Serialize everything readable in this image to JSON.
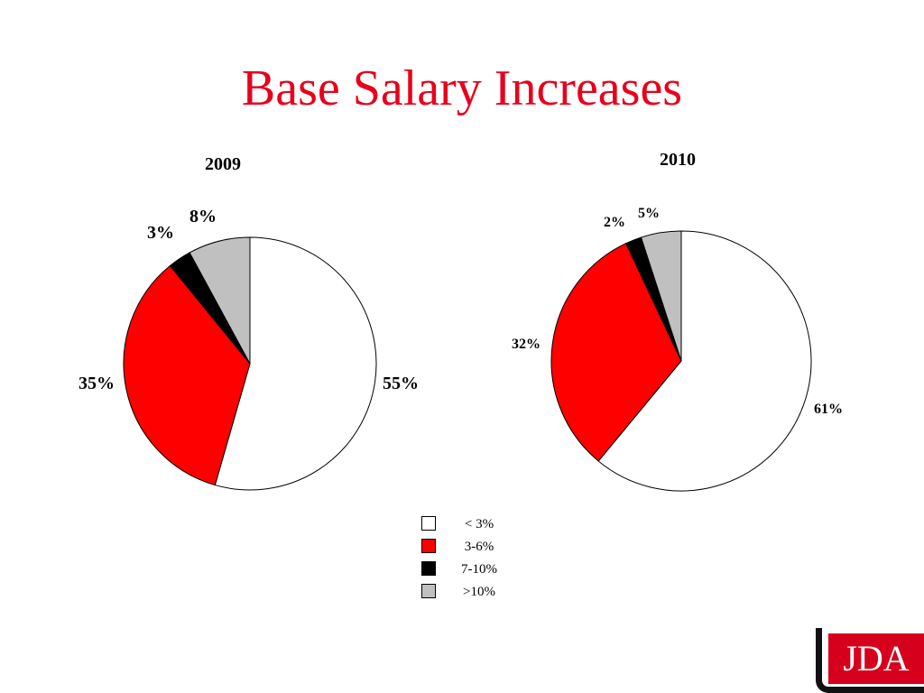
{
  "page": {
    "title": "Base Salary Increases"
  },
  "colors": {
    "title": "#e8001c",
    "slice_white": "#ffffff",
    "slice_red": "#ff0000",
    "slice_black": "#000000",
    "slice_gray": "#c0c0c0",
    "outline": "#000000"
  },
  "legend": {
    "items": [
      {
        "label": "< 3%",
        "color": "#ffffff"
      },
      {
        "label": "3-6%",
        "color": "#ff0000"
      },
      {
        "label": "7-10%",
        "color": "#000000"
      },
      {
        "label": ">10%",
        "color": "#c0c0c0"
      }
    ]
  },
  "logo": {
    "text": "JDA"
  },
  "chart_data": [
    {
      "type": "pie",
      "title": "2009",
      "categories": [
        "< 3%",
        "3-6%",
        "7-10%",
        ">10%"
      ],
      "values": [
        55,
        35,
        3,
        8
      ],
      "labels": [
        "55%",
        "35%",
        "3%",
        "8%"
      ],
      "legend": "bottom-center"
    },
    {
      "type": "pie",
      "title": "2010",
      "categories": [
        "< 3%",
        "3-6%",
        "7-10%",
        ">10%"
      ],
      "values": [
        61,
        32,
        2,
        5
      ],
      "labels": [
        "61%",
        "32%",
        "2%",
        "5%"
      ],
      "legend": "bottom-center"
    }
  ]
}
